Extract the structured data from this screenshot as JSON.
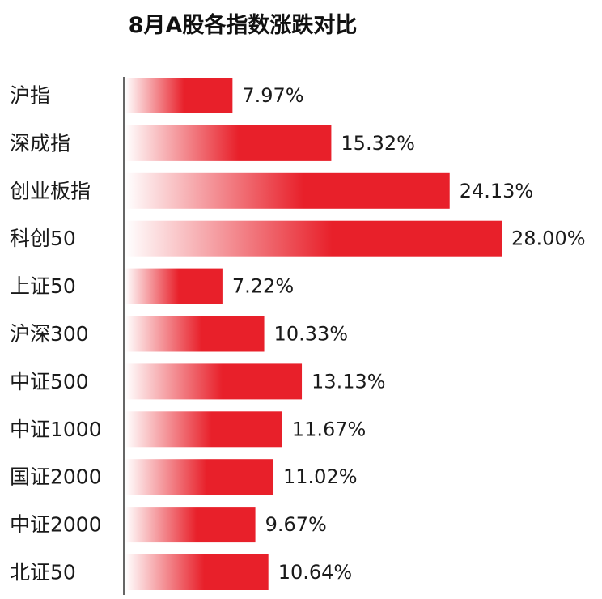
{
  "chart_data": {
    "type": "bar",
    "orientation": "horizontal",
    "title": "8月A股各指数涨跌对比",
    "xlabel": "",
    "ylabel": "",
    "categories": [
      "沪指",
      "深成指",
      "创业板指",
      "科创50",
      "上证50",
      "沪深300",
      "中证500",
      "中证1000",
      "国证2000",
      "中证2000",
      "北证50"
    ],
    "values": [
      7.97,
      15.32,
      24.13,
      28.0,
      7.22,
      10.33,
      13.13,
      11.67,
      11.02,
      9.67,
      10.64
    ],
    "value_labels": [
      "7.97%",
      "15.32%",
      "24.13%",
      "28.00%",
      "7.22%",
      "10.33%",
      "13.13%",
      "11.67%",
      "11.02%",
      "9.67%",
      "10.64%"
    ],
    "xlim": [
      0,
      28
    ],
    "grid": false,
    "bar_color": "#e8202a",
    "bar_fade_color": "#ffffff"
  }
}
